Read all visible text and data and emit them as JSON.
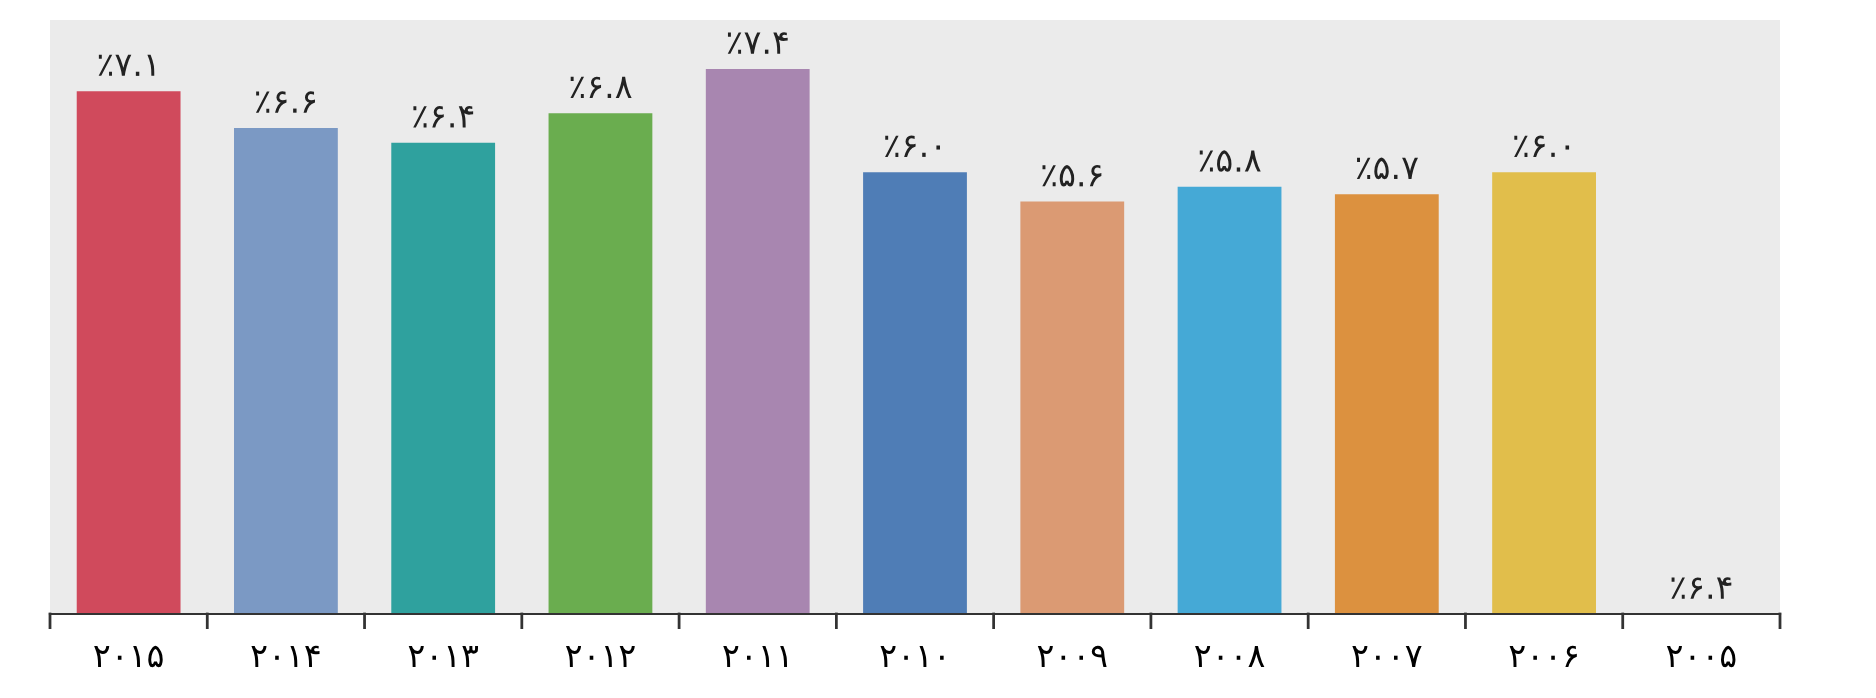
{
  "chart_data": {
    "type": "bar",
    "categories": [
      "۲۰۱۵",
      "۲۰۱۴",
      "۲۰۱۳",
      "۲۰۱۲",
      "۲۰۱۱",
      "۲۰۱۰",
      "۲۰۰۹",
      "۲۰۰۸",
      "۲۰۰۷",
      "۲۰۰۶",
      "۲۰۰۵"
    ],
    "values": [
      7.1,
      6.6,
      6.4,
      6.8,
      7.4,
      6.0,
      5.6,
      5.8,
      5.7,
      6.0,
      null
    ],
    "value_labels": [
      "٪۷.۱",
      "٪۶.۶",
      "٪۶.۴",
      "٪۶.۸",
      "٪۷.۴",
      "٪۶.۰",
      "٪۵.۶",
      "٪۵.۸",
      "٪۵.۷",
      "٪۶.۰",
      "٪۶.۴"
    ],
    "colors": [
      "#d04a5c",
      "#7b99c4",
      "#2fa19e",
      "#6aad4f",
      "#a886b0",
      "#4f7db6",
      "#db9a73",
      "#45a9d6",
      "#dc913f",
      "#e1be4b",
      "#e1be4b"
    ],
    "grid": false,
    "legend": false
  }
}
